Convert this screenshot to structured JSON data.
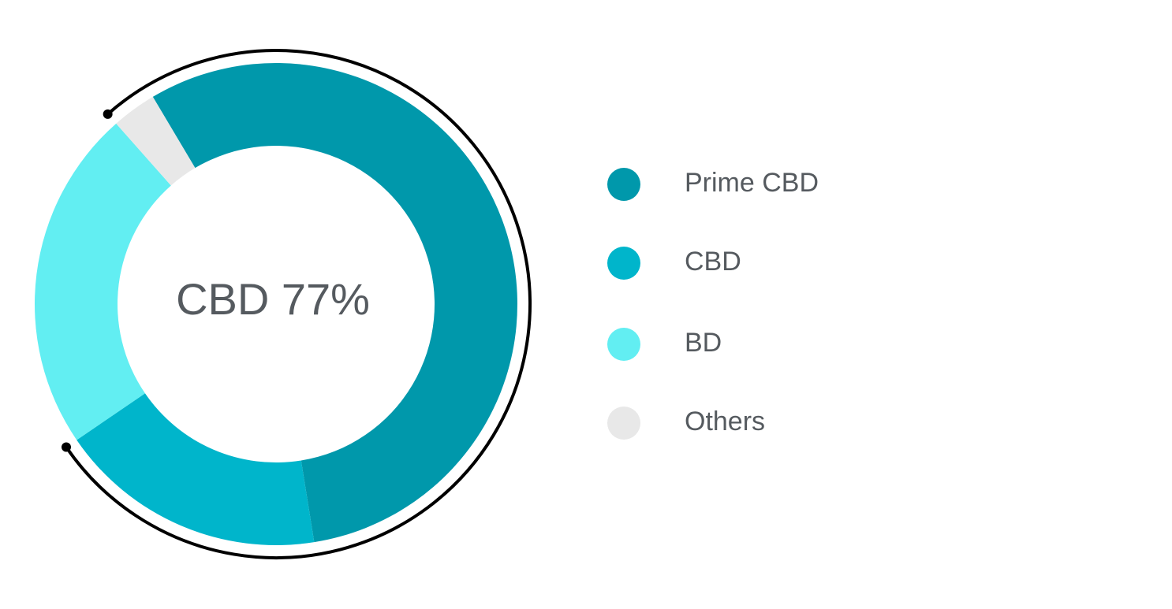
{
  "chart_data": {
    "type": "donut",
    "center_label": "CBD 77%",
    "categories": [
      "Prime CBD",
      "CBD",
      "BD",
      "Others"
    ],
    "values": [
      56,
      18,
      23,
      3
    ],
    "colors": [
      "#0098ab",
      "#00b5cb",
      "#62eef2",
      "#e8e8e8"
    ]
  }
}
